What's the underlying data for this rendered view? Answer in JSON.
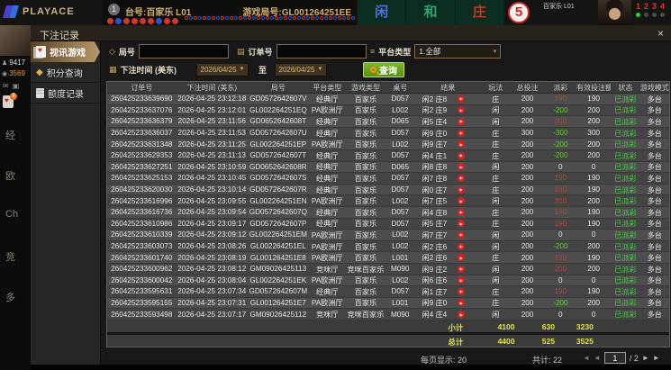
{
  "top_bar": {
    "logo_text": "PLAYACE",
    "table_badge": "1",
    "table_label": "台号:百家乐 L01",
    "round_label": "游戏局号:GL001264251EE",
    "bet_options": [
      {
        "name": "player",
        "label": "闲",
        "color": "#4f6fe8"
      },
      {
        "name": "tie",
        "label": "和",
        "color": "#2fa36b"
      },
      {
        "name": "banker",
        "label": "庄",
        "color": "#cc3322"
      }
    ],
    "countdown": "5",
    "mini_table_label": "百家乐 L01",
    "seat_numbers": [
      "1",
      "2",
      "3",
      "4"
    ],
    "beads": {
      "filled": [
        "r",
        "b",
        "r",
        "r",
        "r",
        "r",
        "b",
        "r",
        "r"
      ],
      "hollow_count": 42
    }
  },
  "left_rail": {
    "user_count": "9417",
    "balance": "3569",
    "menu_fragments": [
      "经",
      "欧",
      "Ch",
      "竞",
      "多"
    ]
  },
  "modal": {
    "title": "下注记录",
    "close_label": "×",
    "sidebar": [
      {
        "label": "视讯游戏"
      },
      {
        "label": "积分查询"
      },
      {
        "label": "额度记录"
      }
    ],
    "filters": {
      "round_label": "局号",
      "order_label": "订单号",
      "platform_label": "平台类型",
      "platform_value": "1.全部",
      "platform_arrow": "▾",
      "time_label": "下注时间 (美东)",
      "date_from": "2026/04/25",
      "date_to": "2026/04/25",
      "date_arrow": "▼",
      "to_label": "至",
      "search_label": "查询"
    },
    "table": {
      "headers": [
        "订单号",
        "下注时间 (美东)",
        "局号",
        "平台类型",
        "游戏类型",
        "桌号",
        "结果",
        "玩法",
        "总投注",
        "派彩",
        "有效投注额",
        "状态",
        "游戏模式"
      ],
      "rows": [
        {
          "order": "260425233639690",
          "time": "2026-04-25 23:12:18",
          "round": "GD0572642607V",
          "platform": "经典厅",
          "game": "百家乐",
          "table": "D057",
          "result": "闲2 庄8",
          "play": "庄",
          "total": "200",
          "payout": "190",
          "trend": "pos",
          "valid": "190",
          "status": "已派彩",
          "mode": "多台"
        },
        {
          "order": "260425233637076",
          "time": "2026-04-25 23:12:01",
          "round": "GL002264251EQ",
          "platform": "PA欧洲厅",
          "game": "百家乐",
          "table": "L002",
          "result": "闲2 庄9",
          "play": "闲",
          "total": "200",
          "payout": "-200",
          "trend": "neg",
          "valid": "200",
          "status": "已派彩",
          "mode": "多台"
        },
        {
          "order": "260425233636379",
          "time": "2026-04-25 23:11:56",
          "round": "GD0652642608T",
          "platform": "经典厅",
          "game": "百家乐",
          "table": "D065",
          "result": "闲5 庄4",
          "play": "闲",
          "total": "200",
          "payout": "200",
          "trend": "pos",
          "valid": "200",
          "status": "已派彩",
          "mode": "多台"
        },
        {
          "order": "260425233636037",
          "time": "2026-04-25 23:11:53",
          "round": "GD0572642607U",
          "platform": "经典厅",
          "game": "百家乐",
          "table": "D057",
          "result": "闲9 庄0",
          "play": "庄",
          "total": "300",
          "payout": "-300",
          "trend": "neg",
          "valid": "300",
          "status": "已派彩",
          "mode": "多台"
        },
        {
          "order": "260425233631348",
          "time": "2026-04-25 23:11:25",
          "round": "GL002264251EP",
          "platform": "PA欧洲厅",
          "game": "百家乐",
          "table": "L002",
          "result": "闲9 庄7",
          "play": "庄",
          "total": "200",
          "payout": "-200",
          "trend": "neg",
          "valid": "200",
          "status": "已派彩",
          "mode": "多台"
        },
        {
          "order": "260425233629353",
          "time": "2026-04-25 23:11:13",
          "round": "GD0572642607T",
          "platform": "经典厅",
          "game": "百家乐",
          "table": "D057",
          "result": "闲4 庄1",
          "play": "庄",
          "total": "200",
          "payout": "-200",
          "trend": "neg",
          "valid": "200",
          "status": "已派彩",
          "mode": "多台"
        },
        {
          "order": "260425233627251",
          "time": "2026-04-25 23:10:59",
          "round": "GD0652642608R",
          "platform": "经典厅",
          "game": "百家乐",
          "table": "D065",
          "result": "闲8 庄8",
          "play": "闲",
          "total": "200",
          "payout": "0",
          "trend": "zero",
          "valid": "0",
          "status": "已派彩",
          "mode": "多台"
        },
        {
          "order": "260425233625153",
          "time": "2026-04-25 23:10:45",
          "round": "GD0572642607S",
          "platform": "经典厅",
          "game": "百家乐",
          "table": "D057",
          "result": "闲7 庄8",
          "play": "庄",
          "total": "200",
          "payout": "190",
          "trend": "pos",
          "valid": "190",
          "status": "已派彩",
          "mode": "多台"
        },
        {
          "order": "260425233620030",
          "time": "2026-04-25 23:10:14",
          "round": "GD0572642607R",
          "platform": "经典厅",
          "game": "百家乐",
          "table": "D057",
          "result": "闲0 庄7",
          "play": "庄",
          "total": "200",
          "payout": "190",
          "trend": "pos",
          "valid": "190",
          "status": "已派彩",
          "mode": "多台"
        },
        {
          "order": "260425233616996",
          "time": "2026-04-25 23:09:55",
          "round": "GL002264251EN",
          "platform": "PA欧洲厅",
          "game": "百家乐",
          "table": "L002",
          "result": "闲7 庄5",
          "play": "闲",
          "total": "200",
          "payout": "200",
          "trend": "pos",
          "valid": "200",
          "status": "已派彩",
          "mode": "多台"
        },
        {
          "order": "260425233616736",
          "time": "2026-04-25 23:09:54",
          "round": "GD0572642607Q",
          "platform": "经典厅",
          "game": "百家乐",
          "table": "D057",
          "result": "闲4 庄8",
          "play": "庄",
          "total": "200",
          "payout": "190",
          "trend": "pos",
          "valid": "190",
          "status": "已派彩",
          "mode": "多台"
        },
        {
          "order": "260425233610986",
          "time": "2026-04-25 23:09:17",
          "round": "GD0572642607P",
          "platform": "经典厅",
          "game": "百家乐",
          "table": "D057",
          "result": "闲5 庄7",
          "play": "庄",
          "total": "200",
          "payout": "190",
          "trend": "pos",
          "valid": "190",
          "status": "已派彩",
          "mode": "多台"
        },
        {
          "order": "260425233610339",
          "time": "2026-04-25 23:09:12",
          "round": "GL002264251EM",
          "platform": "PA欧洲厅",
          "game": "百家乐",
          "table": "L002",
          "result": "闲7 庄7",
          "play": "闲",
          "total": "200",
          "payout": "0",
          "trend": "zero",
          "valid": "0",
          "status": "已派彩",
          "mode": "多台"
        },
        {
          "order": "260425233603073",
          "time": "2026-04-25 23:08:26",
          "round": "GL002264251EL",
          "platform": "PA欧洲厅",
          "game": "百家乐",
          "table": "L002",
          "result": "闲2 庄6",
          "play": "闲",
          "total": "200",
          "payout": "-200",
          "trend": "neg",
          "valid": "200",
          "status": "已派彩",
          "mode": "多台"
        },
        {
          "order": "260425233601740",
          "time": "2026-04-25 23:08:19",
          "round": "GL001264251E8",
          "platform": "PA欧洲厅",
          "game": "百家乐",
          "table": "L001",
          "result": "闲2 庄6",
          "play": "庄",
          "total": "200",
          "payout": "190",
          "trend": "pos",
          "valid": "190",
          "status": "已派彩",
          "mode": "多台"
        },
        {
          "order": "260425233600962",
          "time": "2026-04-25 23:08:12",
          "round": "GM09026425113",
          "platform": "竞咪厅",
          "game": "竞咪百家乐",
          "table": "M090",
          "result": "闲9 庄2",
          "play": "闲",
          "total": "200",
          "payout": "200",
          "trend": "pos",
          "valid": "200",
          "status": "已派彩",
          "mode": "多台"
        },
        {
          "order": "260425233600042",
          "time": "2026-04-25 23:08:04",
          "round": "GL002264251EK",
          "platform": "PA欧洲厅",
          "game": "百家乐",
          "table": "L002",
          "result": "闲6 庄6",
          "play": "闲",
          "total": "200",
          "payout": "0",
          "trend": "zero",
          "valid": "0",
          "status": "已派彩",
          "mode": "多台"
        },
        {
          "order": "260425233595631",
          "time": "2026-04-25 23:07:34",
          "round": "GD0572642607M",
          "platform": "经典厅",
          "game": "百家乐",
          "table": "D057",
          "result": "闲1 庄7",
          "play": "庄",
          "total": "200",
          "payout": "190",
          "trend": "pos",
          "valid": "190",
          "status": "已派彩",
          "mode": "多台"
        },
        {
          "order": "260425233595155",
          "time": "2026-04-25 23:07:31",
          "round": "GL001264251E7",
          "platform": "PA欧洲厅",
          "game": "百家乐",
          "table": "L001",
          "result": "闲9 庄0",
          "play": "庄",
          "total": "200",
          "payout": "-200",
          "trend": "neg",
          "valid": "200",
          "status": "已派彩",
          "mode": "多台"
        },
        {
          "order": "260425233593498",
          "time": "2026-04-25 23:07:17",
          "round": "GM09026425112",
          "platform": "竞咪厅",
          "game": "竞咪百家乐",
          "table": "M090",
          "result": "闲4 庄4",
          "play": "闲",
          "total": "200",
          "payout": "0",
          "trend": "zero",
          "valid": "0",
          "status": "已派彩",
          "mode": "多台"
        }
      ],
      "subtotal": {
        "label": "小计",
        "total_bet": "4100",
        "payout": "630",
        "valid_bet": "3230"
      },
      "grand_total": {
        "label": "总计",
        "total_bet": "4400",
        "payout": "525",
        "valid_bet": "3525"
      }
    },
    "footer": {
      "page_size_text": "每页显示: 20",
      "total_count_text": "共计: 22",
      "first_arrow": "◄",
      "prev_arrow": "◄",
      "page_value": "1",
      "page_total": "/ 2",
      "next_arrow": "►",
      "last_arrow": "►"
    }
  },
  "status_colors": {
    "win": "#b04545",
    "loss": "#5fd02f",
    "paid": "#3ed43e",
    "summary": "#e6e63e"
  }
}
